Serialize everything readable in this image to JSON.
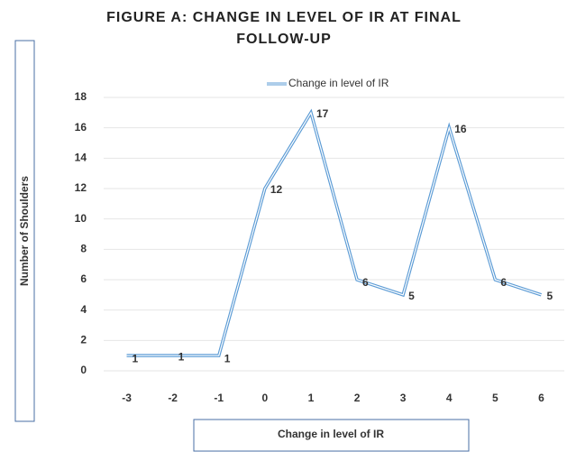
{
  "chart_data": {
    "type": "line",
    "title": "FIGURE A: CHANGE IN LEVEL OF IR AT FINAL FOLLOW-UP",
    "x_label": "Change in level of IR",
    "y_label": "Number of Shoulders",
    "categories": [
      "-3",
      "-2",
      "-1",
      "0",
      "1",
      "2",
      "3",
      "4",
      "5",
      "6"
    ],
    "series": [
      {
        "name": "Change in level of IR",
        "color": "#5b9bd5",
        "values": [
          1,
          1,
          1,
          12,
          17,
          6,
          5,
          16,
          6,
          5
        ]
      }
    ],
    "ylim": [
      0,
      18
    ],
    "yticks": [
      0,
      2,
      4,
      6,
      8,
      10,
      12,
      14,
      16,
      18
    ],
    "grid": true,
    "legend": "top"
  }
}
